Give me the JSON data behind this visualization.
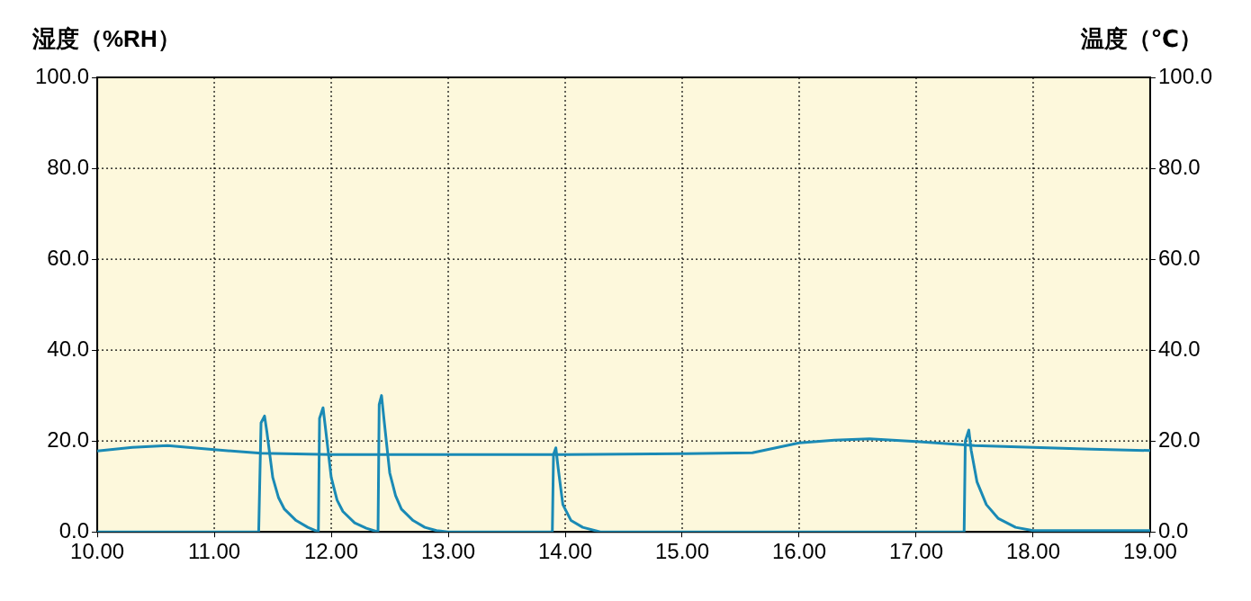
{
  "chart_data": {
    "type": "line",
    "ylabel": "湿度（%RH）",
    "y2label": "温度（℃）",
    "xlim": [
      10,
      19
    ],
    "xticks": [
      {
        "value": 10,
        "label": "10.00"
      },
      {
        "value": 11,
        "label": "11.00"
      },
      {
        "value": 12,
        "label": "12.00"
      },
      {
        "value": 13,
        "label": "13.00"
      },
      {
        "value": 14,
        "label": "14.00"
      },
      {
        "value": 15,
        "label": "15.00"
      },
      {
        "value": 16,
        "label": "16.00"
      },
      {
        "value": 17,
        "label": "17.00"
      },
      {
        "value": 18,
        "label": "18.00"
      },
      {
        "value": 19,
        "label": "19.00"
      }
    ],
    "ylim": [
      0,
      100
    ],
    "yticks": [
      {
        "value": 0,
        "label": "0.0"
      },
      {
        "value": 20,
        "label": "20.0"
      },
      {
        "value": 40,
        "label": "40.0"
      },
      {
        "value": 60,
        "label": "60.0"
      },
      {
        "value": 80,
        "label": "80.0"
      },
      {
        "value": 100,
        "label": "100.0"
      }
    ],
    "y2lim": [
      0,
      100
    ],
    "y2ticks": [
      {
        "value": 0,
        "label": "0.0"
      },
      {
        "value": 20,
        "label": "20.0"
      },
      {
        "value": 40,
        "label": "40.0"
      },
      {
        "value": 60,
        "label": "60.0"
      },
      {
        "value": 80,
        "label": "80.0"
      },
      {
        "value": 100,
        "label": "100.0"
      }
    ],
    "grid": true,
    "marker": "none",
    "line_style": "solid",
    "legend": false,
    "series": [
      {
        "color": "#1a8ab5",
        "x": [
          10,
          11.38,
          11.4,
          11.43,
          11.45,
          11.5,
          11.55,
          11.6,
          11.7,
          11.8,
          11.89,
          11.9,
          11.93,
          11.95,
          12,
          12.05,
          12.1,
          12.2,
          12.3,
          12.4,
          12.41,
          12.43,
          12.45,
          12.5,
          12.55,
          12.6,
          12.7,
          12.8,
          12.9,
          13,
          13.89,
          13.9,
          13.92,
          13.94,
          13.98,
          14.05,
          14.15,
          14.3,
          17.41,
          17.42,
          17.45,
          17.47,
          17.52,
          17.6,
          17.7,
          17.85,
          18,
          19
        ],
        "values": [
          0,
          0,
          24,
          25.5,
          22,
          12,
          7.5,
          5,
          2.5,
          1,
          0,
          25,
          27.3,
          23,
          12,
          7,
          4.5,
          2,
          0.8,
          0,
          28,
          30,
          25,
          13,
          8,
          5,
          2.5,
          1,
          0.3,
          0,
          0,
          17,
          18.5,
          14,
          6,
          2.5,
          1,
          0,
          0,
          20,
          22.4,
          18,
          11,
          6,
          3,
          1,
          0.3,
          0.3
        ]
      },
      {
        "color": "#1a8ab5",
        "axis": "y2",
        "x": [
          10,
          10.3,
          10.6,
          11,
          11.4,
          12,
          13,
          14,
          15,
          15.6,
          16,
          16.3,
          16.6,
          17,
          17.5,
          18,
          18.5,
          19
        ],
        "values": [
          17.8,
          18.6,
          19,
          18.1,
          17.3,
          17,
          17,
          17,
          17.2,
          17.4,
          19.6,
          20.2,
          20.5,
          19.9,
          19,
          18.6,
          18.2,
          17.9
        ]
      }
    ]
  }
}
